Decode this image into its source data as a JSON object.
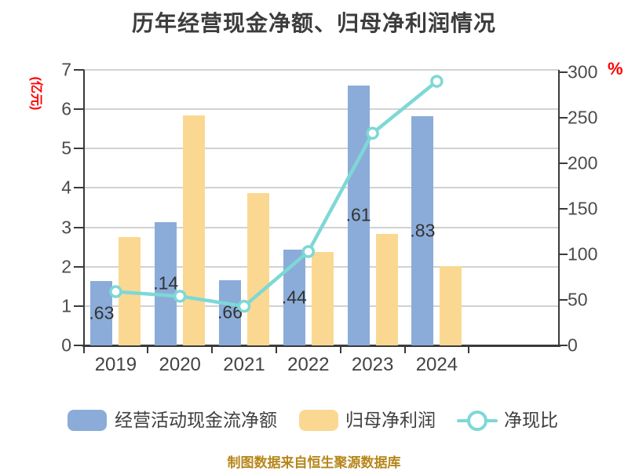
{
  "title": "历年经营现金净额、归母净利润情况",
  "footer": "制图数据来自恒生聚源数据库",
  "colors": {
    "bar_cashflow": "#8bacd8",
    "bar_profit": "#fbd892",
    "line_ratio": "#7dd8d6",
    "marker_fill": "#ffffff",
    "axis": "#3a3a3a",
    "grid": "#d2d2d2",
    "tick_text": "#4b4b4b",
    "bar_label_text": "#333333",
    "unit_text": "#ff0000",
    "title_text": "#3c3c3c",
    "footer_text": "#b6861b"
  },
  "chart_data": {
    "type": "bar",
    "title": "历年经营现金净额、归母净利润情况",
    "categories": [
      "2019",
      "2020",
      "2021",
      "2022",
      "2023",
      "2024"
    ],
    "series": [
      {
        "name": "经营活动现金流净额",
        "type": "bar",
        "yaxis": "left",
        "values": [
          1.63,
          3.14,
          1.66,
          2.44,
          6.61,
          5.83
        ],
        "bar_labels": [
          ".63",
          ".14",
          ".66",
          ".44",
          ".61",
          ".83"
        ]
      },
      {
        "name": "归母净利润",
        "type": "bar",
        "yaxis": "left",
        "values": [
          2.76,
          5.85,
          3.86,
          2.37,
          2.84,
          2.01
        ]
      },
      {
        "name": "净现比",
        "type": "line",
        "yaxis": "right",
        "values": [
          59,
          54,
          43,
          103,
          233,
          290
        ]
      }
    ],
    "left_axis": {
      "unit": "(亿元)",
      "min": 0,
      "max": 7,
      "tick_step": 1,
      "tick_labels": [
        "0",
        "1",
        "2",
        "3",
        "4",
        "5",
        "6",
        "7"
      ]
    },
    "right_axis": {
      "unit": "%",
      "min": 0,
      "max": 300,
      "tick_step": 50,
      "tick_labels": [
        "0",
        "50",
        "100",
        "150",
        "200",
        "250",
        "300"
      ]
    },
    "grid": "horizontal",
    "legend_position": "bottom"
  }
}
